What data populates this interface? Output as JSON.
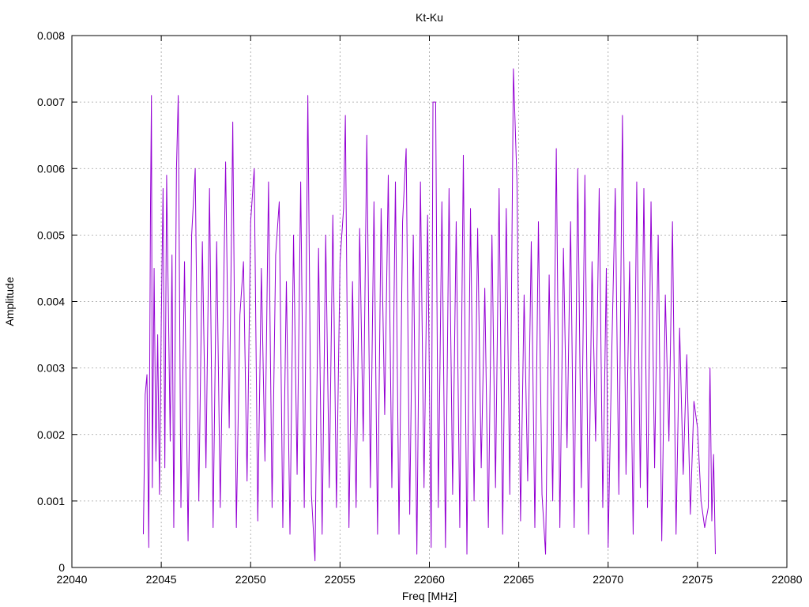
{
  "chart_data": {
    "type": "line",
    "title": "Kt-Ku",
    "xlabel": "Freq [MHz]",
    "ylabel": "Amplitude",
    "xlim": [
      22040,
      22080
    ],
    "ylim": [
      0,
      0.008
    ],
    "grid": true,
    "xticks": [
      "22040",
      "22045",
      "22050",
      "22055",
      "22060",
      "22065",
      "22070",
      "22075",
      "22080"
    ],
    "yticks": [
      "0",
      "0.001",
      "0.002",
      "0.003",
      "0.004",
      "0.005",
      "0.006",
      "0.007",
      "0.008"
    ],
    "series": [
      {
        "name": "",
        "color": "#9400d3",
        "points": [
          [
            22044.0,
            0.0005
          ],
          [
            22044.1,
            0.0026
          ],
          [
            22044.2,
            0.0029
          ],
          [
            22044.3,
            0.0003
          ],
          [
            22044.4,
            0.0055
          ],
          [
            22044.45,
            0.0071
          ],
          [
            22044.5,
            0.0012
          ],
          [
            22044.6,
            0.0045
          ],
          [
            22044.7,
            0.0016
          ],
          [
            22044.8,
            0.0035
          ],
          [
            22044.9,
            0.0011
          ],
          [
            22045.0,
            0.0037
          ],
          [
            22045.1,
            0.0057
          ],
          [
            22045.2,
            0.0015
          ],
          [
            22045.3,
            0.0059
          ],
          [
            22045.5,
            0.0019
          ],
          [
            22045.6,
            0.0047
          ],
          [
            22045.7,
            0.0006
          ],
          [
            22045.85,
            0.006
          ],
          [
            22045.95,
            0.0071
          ],
          [
            22046.1,
            0.0009
          ],
          [
            22046.3,
            0.0046
          ],
          [
            22046.5,
            0.0004
          ],
          [
            22046.7,
            0.005
          ],
          [
            22046.9,
            0.006
          ],
          [
            22047.1,
            0.001
          ],
          [
            22047.3,
            0.0049
          ],
          [
            22047.5,
            0.0015
          ],
          [
            22047.7,
            0.0057
          ],
          [
            22047.9,
            0.0006
          ],
          [
            22048.1,
            0.0049
          ],
          [
            22048.3,
            0.0009
          ],
          [
            22048.6,
            0.0061
          ],
          [
            22048.8,
            0.0021
          ],
          [
            22049.0,
            0.0067
          ],
          [
            22049.2,
            0.0006
          ],
          [
            22049.4,
            0.0038
          ],
          [
            22049.6,
            0.0046
          ],
          [
            22049.8,
            0.0013
          ],
          [
            22050.0,
            0.0052
          ],
          [
            22050.2,
            0.006
          ],
          [
            22050.4,
            0.0007
          ],
          [
            22050.6,
            0.0045
          ],
          [
            22050.8,
            0.0016
          ],
          [
            22051.0,
            0.0058
          ],
          [
            22051.2,
            0.0009
          ],
          [
            22051.4,
            0.0047
          ],
          [
            22051.6,
            0.0055
          ],
          [
            22051.8,
            0.0006
          ],
          [
            22052.0,
            0.0043
          ],
          [
            22052.2,
            0.0005
          ],
          [
            22052.4,
            0.005
          ],
          [
            22052.6,
            0.0014
          ],
          [
            22052.8,
            0.0058
          ],
          [
            22053.0,
            0.0009
          ],
          [
            22053.2,
            0.0071
          ],
          [
            22053.4,
            0.0011
          ],
          [
            22053.6,
            0.0001
          ],
          [
            22053.8,
            0.0048
          ],
          [
            22054.0,
            0.0005
          ],
          [
            22054.2,
            0.005
          ],
          [
            22054.4,
            0.0012
          ],
          [
            22054.6,
            0.0053
          ],
          [
            22054.8,
            0.0009
          ],
          [
            22055.0,
            0.0046
          ],
          [
            22055.2,
            0.0054
          ],
          [
            22055.3,
            0.0068
          ],
          [
            22055.5,
            0.0006
          ],
          [
            22055.7,
            0.0043
          ],
          [
            22055.9,
            0.0009
          ],
          [
            22056.1,
            0.0051
          ],
          [
            22056.3,
            0.0019
          ],
          [
            22056.5,
            0.0065
          ],
          [
            22056.7,
            0.0012
          ],
          [
            22056.9,
            0.0055
          ],
          [
            22057.1,
            0.0005
          ],
          [
            22057.3,
            0.0054
          ],
          [
            22057.5,
            0.0023
          ],
          [
            22057.7,
            0.0059
          ],
          [
            22057.9,
            0.0012
          ],
          [
            22058.1,
            0.0058
          ],
          [
            22058.3,
            0.0005
          ],
          [
            22058.5,
            0.0052
          ],
          [
            22058.7,
            0.0063
          ],
          [
            22058.9,
            0.0008
          ],
          [
            22059.1,
            0.005
          ],
          [
            22059.3,
            0.0002
          ],
          [
            22059.5,
            0.0058
          ],
          [
            22059.7,
            0.0012
          ],
          [
            22059.9,
            0.0053
          ],
          [
            22060.1,
            0.0003
          ],
          [
            22060.2,
            0.007
          ],
          [
            22060.35,
            0.007
          ],
          [
            22060.5,
            0.0009
          ],
          [
            22060.7,
            0.0055
          ],
          [
            22060.9,
            0.0003
          ],
          [
            22061.1,
            0.0057
          ],
          [
            22061.3,
            0.0011
          ],
          [
            22061.5,
            0.0052
          ],
          [
            22061.7,
            0.0006
          ],
          [
            22061.9,
            0.0062
          ],
          [
            22062.1,
            0.0002
          ],
          [
            22062.3,
            0.0054
          ],
          [
            22062.5,
            0.001
          ],
          [
            22062.7,
            0.0051
          ],
          [
            22062.9,
            0.0015
          ],
          [
            22063.1,
            0.0042
          ],
          [
            22063.3,
            0.0006
          ],
          [
            22063.5,
            0.005
          ],
          [
            22063.7,
            0.0012
          ],
          [
            22063.9,
            0.0057
          ],
          [
            22064.1,
            0.0005
          ],
          [
            22064.3,
            0.0054
          ],
          [
            22064.5,
            0.0011
          ],
          [
            22064.7,
            0.0075
          ],
          [
            22064.9,
            0.0058
          ],
          [
            22065.1,
            0.0007
          ],
          [
            22065.3,
            0.0041
          ],
          [
            22065.5,
            0.0013
          ],
          [
            22065.7,
            0.0049
          ],
          [
            22065.9,
            0.0006
          ],
          [
            22066.1,
            0.0052
          ],
          [
            22066.3,
            0.0011
          ],
          [
            22066.5,
            0.0002
          ],
          [
            22066.7,
            0.0044
          ],
          [
            22066.9,
            0.001
          ],
          [
            22067.1,
            0.0063
          ],
          [
            22067.3,
            0.0006
          ],
          [
            22067.5,
            0.0048
          ],
          [
            22067.7,
            0.0018
          ],
          [
            22067.9,
            0.0052
          ],
          [
            22068.1,
            0.0006
          ],
          [
            22068.3,
            0.006
          ],
          [
            22068.5,
            0.0012
          ],
          [
            22068.7,
            0.0059
          ],
          [
            22068.9,
            0.0005
          ],
          [
            22069.1,
            0.0046
          ],
          [
            22069.3,
            0.0019
          ],
          [
            22069.5,
            0.0057
          ],
          [
            22069.7,
            0.0009
          ],
          [
            22069.9,
            0.0045
          ],
          [
            22070.0,
            0.0003
          ],
          [
            22070.2,
            0.0032
          ],
          [
            22070.4,
            0.0057
          ],
          [
            22070.6,
            0.0011
          ],
          [
            22070.8,
            0.0068
          ],
          [
            22071.0,
            0.0014
          ],
          [
            22071.2,
            0.0046
          ],
          [
            22071.4,
            0.0005
          ],
          [
            22071.6,
            0.0058
          ],
          [
            22071.8,
            0.0012
          ],
          [
            22072.0,
            0.0057
          ],
          [
            22072.2,
            0.0009
          ],
          [
            22072.4,
            0.0055
          ],
          [
            22072.6,
            0.0015
          ],
          [
            22072.8,
            0.005
          ],
          [
            22073.0,
            0.0004
          ],
          [
            22073.2,
            0.0041
          ],
          [
            22073.4,
            0.0019
          ],
          [
            22073.6,
            0.0052
          ],
          [
            22073.8,
            0.0005
          ],
          [
            22074.0,
            0.0036
          ],
          [
            22074.2,
            0.0014
          ],
          [
            22074.4,
            0.0032
          ],
          [
            22074.6,
            0.0008
          ],
          [
            22074.8,
            0.0025
          ],
          [
            22075.0,
            0.0021
          ],
          [
            22075.2,
            0.001
          ],
          [
            22075.4,
            0.0006
          ],
          [
            22075.6,
            0.0009
          ],
          [
            22075.7,
            0.003
          ],
          [
            22075.8,
            0.0007
          ],
          [
            22075.9,
            0.0017
          ],
          [
            22076.0,
            0.0002
          ]
        ]
      }
    ]
  }
}
